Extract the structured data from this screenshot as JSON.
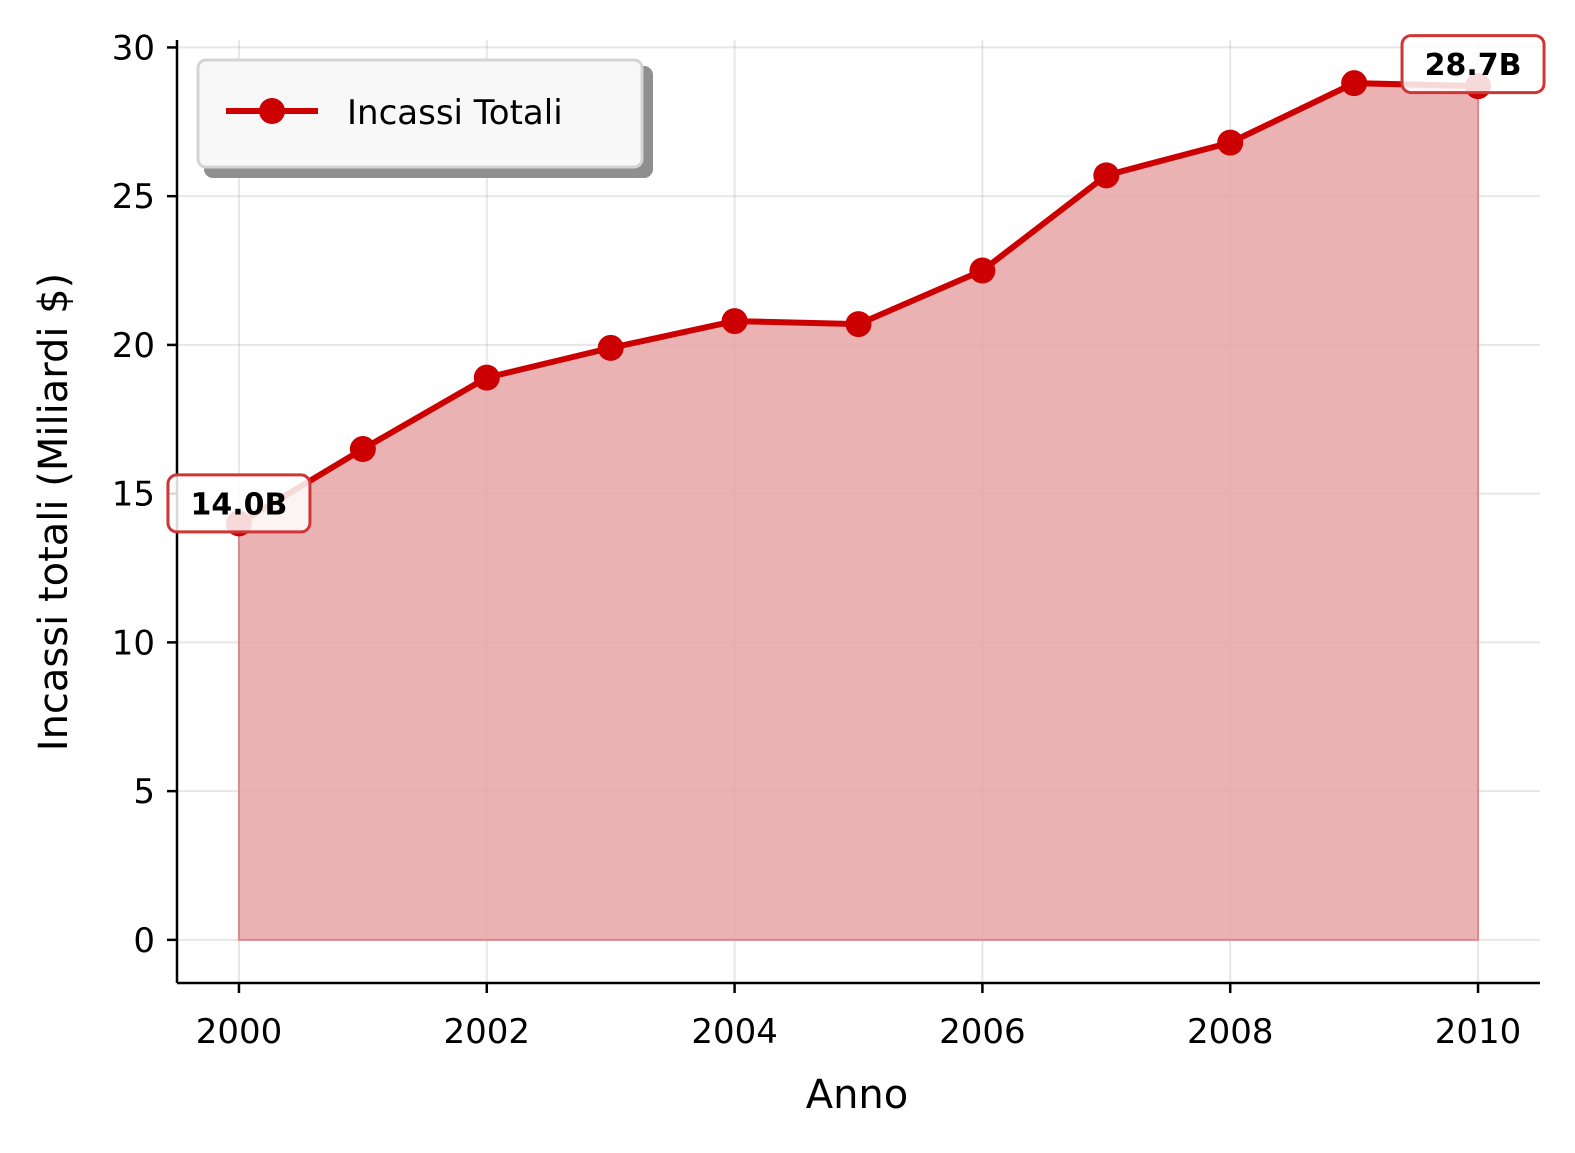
{
  "chart_data": {
    "type": "area",
    "xlabel": "Anno",
    "ylabel": "Incassi totali (Miliardi $)",
    "x": [
      2000,
      2001,
      2002,
      2003,
      2004,
      2005,
      2006,
      2007,
      2008,
      2009,
      2010
    ],
    "series": [
      {
        "name": "Incassi Totali",
        "values": [
          14.0,
          16.5,
          18.9,
          19.9,
          20.8,
          20.7,
          22.5,
          25.7,
          26.8,
          28.8,
          28.7
        ],
        "color": "#cc0000",
        "fill_color": "#e8a5a7"
      }
    ],
    "xlim": [
      1999.5,
      2010.5
    ],
    "ylim": [
      -1.45,
      30.25
    ],
    "xticks": [
      "2000",
      "2002",
      "2004",
      "2006",
      "2008",
      "2010"
    ],
    "yticks": [
      "0",
      "5",
      "10",
      "15",
      "20",
      "25",
      "30"
    ],
    "annotations": [
      {
        "x": 2000,
        "y": 14.0,
        "text": "14.0B"
      },
      {
        "x": 2010,
        "y": 28.7,
        "text": "28.7B"
      }
    ],
    "grid": true,
    "legend_position": "upper-left"
  }
}
